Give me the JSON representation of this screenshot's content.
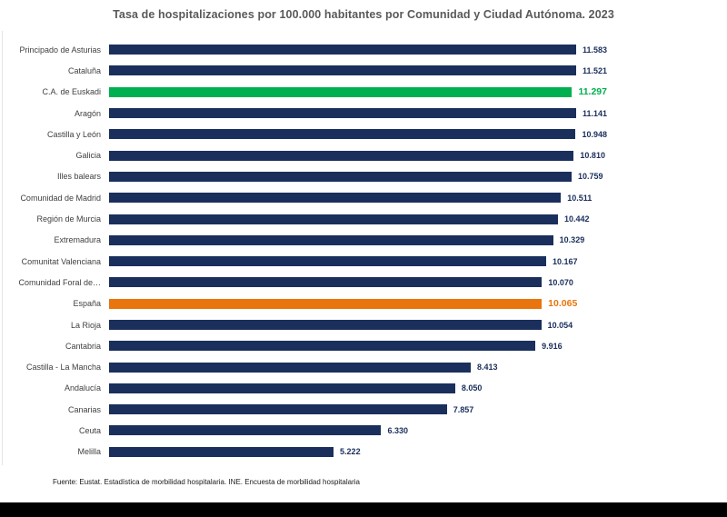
{
  "title": "Tasa de hospitalizaciones por 100.000 habitantes por Comunidad y Ciudad Autónoma. 2023",
  "source_note": "Fuente: Eustat. Estadística de morbilidad hospitalaria. INE. Encuesta de morbilidad hospitalaria",
  "colors": {
    "bar_default": "#1a2f5c",
    "value_default": "#1a2f5c",
    "highlight_green": "#00b050",
    "highlight_orange": "#e8750e",
    "title_text": "#595959",
    "category_text": "#3f3f3f",
    "bottom_bar": "#000000"
  },
  "chart_data": {
    "type": "bar",
    "orientation": "horizontal",
    "title": "Tasa de hospitalizaciones por 100.000 habitantes por Comunidad y Ciudad Autónoma. 2023",
    "xlabel": "",
    "ylabel": "",
    "axis_max": 11583,
    "grid": false,
    "legend": false,
    "categories": [
      "Principado de Asturias",
      "Cataluña",
      "C.A. de Euskadi",
      "Aragón",
      "Castilla y León",
      "Galicia",
      "Illes balears",
      "Comunidad de Madrid",
      "Región de Murcia",
      "Extremadura",
      "Comunitat Valenciana",
      "Comunidad Foral de…",
      "España",
      "La Rioja",
      "Cantabria",
      "Castilla - La Mancha",
      "Andalucía",
      "Canarias",
      "Ceuta",
      "Melilla"
    ],
    "values": [
      11583,
      11521,
      11297,
      11141,
      10948,
      10810,
      10759,
      10511,
      10442,
      10329,
      10167,
      10070,
      10065,
      10054,
      9916,
      8413,
      8050,
      7857,
      6330,
      5222
    ],
    "value_labels": [
      "11.583",
      "11.521",
      "11.297",
      "11.141",
      "10.948",
      "10.810",
      "10.759",
      "10.511",
      "10.442",
      "10.329",
      "10.167",
      "10.070",
      "10.065",
      "10.054",
      "9.916",
      "8.413",
      "8.050",
      "7.857",
      "6.330",
      "5.222"
    ],
    "highlights": [
      null,
      null,
      "green",
      null,
      null,
      null,
      null,
      null,
      null,
      null,
      null,
      null,
      "orange",
      null,
      null,
      null,
      null,
      null,
      null,
      null
    ]
  }
}
